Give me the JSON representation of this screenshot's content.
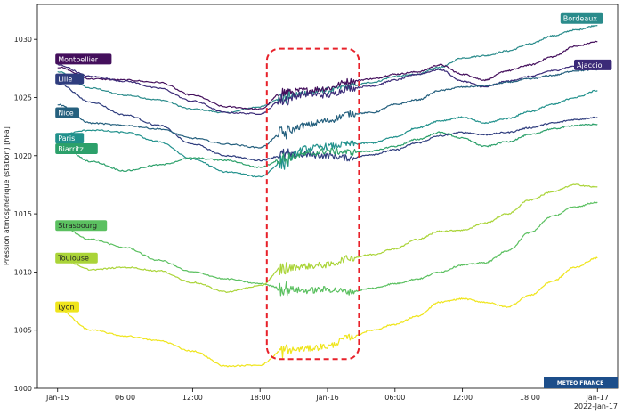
{
  "logo_text": "METEO FRANCE",
  "colors": {
    "logo_bg": "#1d4e8a",
    "highlight_box": "#e8212a",
    "label_text_dark": "#ffffff"
  },
  "chart_data": {
    "type": "line",
    "ylabel": "Pression atmosphérique (station) [hPa]",
    "xlabel": "",
    "ylim": [
      1000,
      1033
    ],
    "xlim_hours": [
      -1.8,
      49.8
    ],
    "grid": false,
    "y_ticks": [
      1000,
      1005,
      1010,
      1015,
      1020,
      1025,
      1030
    ],
    "x_ticks": [
      {
        "hour": 0,
        "label": "Jan-15"
      },
      {
        "hour": 6,
        "label": "06:00"
      },
      {
        "hour": 12,
        "label": "12:00"
      },
      {
        "hour": 18,
        "label": "18:00"
      },
      {
        "hour": 24,
        "label": "Jan-16"
      },
      {
        "hour": 30,
        "label": "06:00"
      },
      {
        "hour": 36,
        "label": "12:00"
      },
      {
        "hour": 42,
        "label": "18:00"
      },
      {
        "hour": 48,
        "label": "Jan-17"
      }
    ],
    "x_offset_label": "2022-Jan-17",
    "highlight_window_hours": [
      18.6,
      26.8
    ],
    "highlight_window_ylim": [
      1002.5,
      1029.2
    ],
    "series": [
      {
        "name": "Bordeaux",
        "color": "#2a8b8b",
        "points": [
          [
            0,
            1027.2
          ],
          [
            3,
            1025.8
          ],
          [
            6,
            1025.2
          ],
          [
            9,
            1024.8
          ],
          [
            12,
            1024.0
          ],
          [
            15,
            1023.7
          ],
          [
            18,
            1024.2
          ],
          [
            20,
            1025.0
          ],
          [
            22,
            1025.4
          ],
          [
            24,
            1025.6
          ],
          [
            26,
            1026.0
          ],
          [
            28,
            1026.3
          ],
          [
            30,
            1026.8
          ],
          [
            32,
            1027.0
          ],
          [
            34,
            1027.6
          ],
          [
            36,
            1028.4
          ],
          [
            38,
            1028.6
          ],
          [
            40,
            1029.0
          ],
          [
            42,
            1029.6
          ],
          [
            44,
            1030.3
          ],
          [
            46,
            1030.8
          ],
          [
            48,
            1031.2
          ]
        ]
      },
      {
        "name": "Montpellier",
        "color": "#440f5c",
        "points": [
          [
            0,
            1027.6
          ],
          [
            3,
            1026.6
          ],
          [
            6,
            1026.5
          ],
          [
            9,
            1026.3
          ],
          [
            12,
            1025.2
          ],
          [
            15,
            1024.2
          ],
          [
            18,
            1024.0
          ],
          [
            20,
            1025.4
          ],
          [
            22,
            1025.6
          ],
          [
            24,
            1025.8
          ],
          [
            26,
            1026.4
          ],
          [
            28,
            1026.6
          ],
          [
            30,
            1027.0
          ],
          [
            32,
            1027.2
          ],
          [
            34,
            1027.8
          ],
          [
            36,
            1027.0
          ],
          [
            38,
            1026.5
          ],
          [
            40,
            1027.3
          ],
          [
            42,
            1027.8
          ],
          [
            44,
            1028.5
          ],
          [
            46,
            1029.4
          ],
          [
            48,
            1029.8
          ]
        ]
      },
      {
        "name": "Ajaccio",
        "color": "#3b2a78",
        "points": [
          [
            0,
            1027.8
          ],
          [
            3,
            1026.8
          ],
          [
            6,
            1026.4
          ],
          [
            9,
            1025.8
          ],
          [
            12,
            1024.7
          ],
          [
            15,
            1023.7
          ],
          [
            18,
            1023.6
          ],
          [
            20,
            1024.8
          ],
          [
            22,
            1025.3
          ],
          [
            24,
            1025.2
          ],
          [
            26,
            1025.8
          ],
          [
            28,
            1026.0
          ],
          [
            30,
            1026.5
          ],
          [
            32,
            1027.0
          ],
          [
            34,
            1027.4
          ],
          [
            36,
            1026.4
          ],
          [
            38,
            1025.9
          ],
          [
            40,
            1026.4
          ],
          [
            42,
            1026.8
          ],
          [
            44,
            1027.3
          ],
          [
            46,
            1027.7
          ],
          [
            48,
            1028.0
          ]
        ]
      },
      {
        "name": "Lille",
        "color": "#2f3d7e",
        "points": [
          [
            0,
            1026.2
          ],
          [
            3,
            1024.6
          ],
          [
            6,
            1023.5
          ],
          [
            9,
            1022.6
          ],
          [
            12,
            1021.0
          ],
          [
            15,
            1020.0
          ],
          [
            18,
            1019.6
          ],
          [
            20,
            1020.0
          ],
          [
            22,
            1020.1
          ],
          [
            24,
            1020.0
          ],
          [
            26,
            1019.8
          ],
          [
            28,
            1020.1
          ],
          [
            30,
            1020.5
          ],
          [
            32,
            1021.1
          ],
          [
            34,
            1021.7
          ],
          [
            36,
            1022.0
          ],
          [
            38,
            1021.8
          ],
          [
            40,
            1022.0
          ],
          [
            42,
            1022.4
          ],
          [
            44,
            1022.8
          ],
          [
            46,
            1023.1
          ],
          [
            48,
            1023.3
          ]
        ]
      },
      {
        "name": "Nice",
        "color": "#25607e",
        "points": [
          [
            0,
            1024.4
          ],
          [
            3,
            1022.8
          ],
          [
            6,
            1022.6
          ],
          [
            9,
            1022.3
          ],
          [
            12,
            1021.5
          ],
          [
            15,
            1021.0
          ],
          [
            18,
            1020.7
          ],
          [
            20,
            1021.9
          ],
          [
            22,
            1022.6
          ],
          [
            24,
            1023.0
          ],
          [
            26,
            1023.6
          ],
          [
            28,
            1023.7
          ],
          [
            30,
            1024.4
          ],
          [
            32,
            1024.8
          ],
          [
            34,
            1025.6
          ],
          [
            36,
            1025.9
          ],
          [
            38,
            1026.0
          ],
          [
            40,
            1026.3
          ],
          [
            42,
            1026.6
          ],
          [
            44,
            1026.9
          ],
          [
            46,
            1027.3
          ],
          [
            48,
            1027.4
          ]
        ]
      },
      {
        "name": "Paris",
        "color": "#21918c",
        "points": [
          [
            0,
            1021.8
          ],
          [
            3,
            1022.2
          ],
          [
            6,
            1022.0
          ],
          [
            9,
            1021.2
          ],
          [
            12,
            1019.7
          ],
          [
            15,
            1018.6
          ],
          [
            18,
            1018.2
          ],
          [
            20,
            1019.4
          ],
          [
            22,
            1020.6
          ],
          [
            24,
            1020.8
          ],
          [
            26,
            1021.0
          ],
          [
            28,
            1021.1
          ],
          [
            30,
            1021.6
          ],
          [
            32,
            1022.4
          ],
          [
            34,
            1023.0
          ],
          [
            36,
            1023.3
          ],
          [
            38,
            1022.8
          ],
          [
            40,
            1023.2
          ],
          [
            42,
            1023.8
          ],
          [
            44,
            1024.4
          ],
          [
            46,
            1025.0
          ],
          [
            48,
            1025.6
          ]
        ]
      },
      {
        "name": "Biarritz",
        "color": "#2ca06a",
        "points": [
          [
            0,
            1021.0
          ],
          [
            3,
            1019.5
          ],
          [
            6,
            1018.7
          ],
          [
            9,
            1019.2
          ],
          [
            12,
            1019.8
          ],
          [
            15,
            1019.6
          ],
          [
            18,
            1019.0
          ],
          [
            20,
            1019.7
          ],
          [
            22,
            1020.1
          ],
          [
            24,
            1020.4
          ],
          [
            26,
            1020.3
          ],
          [
            28,
            1020.4
          ],
          [
            30,
            1020.8
          ],
          [
            32,
            1021.4
          ],
          [
            34,
            1022.0
          ],
          [
            36,
            1021.5
          ],
          [
            38,
            1020.8
          ],
          [
            40,
            1021.2
          ],
          [
            42,
            1021.8
          ],
          [
            44,
            1022.3
          ],
          [
            46,
            1022.6
          ],
          [
            48,
            1022.7
          ]
        ]
      },
      {
        "name": "Strasbourg",
        "color": "#5bc060",
        "points": [
          [
            0,
            1014.0
          ],
          [
            3,
            1012.8
          ],
          [
            6,
            1012.1
          ],
          [
            9,
            1011.0
          ],
          [
            12,
            1010.0
          ],
          [
            15,
            1009.4
          ],
          [
            18,
            1009.0
          ],
          [
            20,
            1008.6
          ],
          [
            22,
            1008.4
          ],
          [
            24,
            1008.5
          ],
          [
            26,
            1008.3
          ],
          [
            28,
            1008.6
          ],
          [
            30,
            1009.0
          ],
          [
            32,
            1009.4
          ],
          [
            34,
            1010.0
          ],
          [
            36,
            1010.6
          ],
          [
            38,
            1010.8
          ],
          [
            40,
            1011.8
          ],
          [
            42,
            1013.4
          ],
          [
            44,
            1014.8
          ],
          [
            46,
            1015.6
          ],
          [
            48,
            1016.0
          ]
        ]
      },
      {
        "name": "Toulouse",
        "color": "#aad438",
        "points": [
          [
            0,
            1011.2
          ],
          [
            3,
            1010.2
          ],
          [
            6,
            1010.4
          ],
          [
            9,
            1010.1
          ],
          [
            12,
            1009.1
          ],
          [
            15,
            1008.3
          ],
          [
            18,
            1008.8
          ],
          [
            20,
            1010.3
          ],
          [
            22,
            1010.5
          ],
          [
            24,
            1010.6
          ],
          [
            26,
            1011.2
          ],
          [
            28,
            1011.5
          ],
          [
            30,
            1012.0
          ],
          [
            32,
            1012.8
          ],
          [
            34,
            1013.5
          ],
          [
            36,
            1013.6
          ],
          [
            38,
            1014.2
          ],
          [
            40,
            1015.0
          ],
          [
            42,
            1016.2
          ],
          [
            44,
            1016.9
          ],
          [
            46,
            1017.5
          ],
          [
            48,
            1017.3
          ]
        ]
      },
      {
        "name": "Lyon",
        "color": "#efe51c",
        "points": [
          [
            0,
            1006.8
          ],
          [
            3,
            1005.0
          ],
          [
            6,
            1004.5
          ],
          [
            9,
            1004.1
          ],
          [
            12,
            1003.2
          ],
          [
            15,
            1001.9
          ],
          [
            18,
            1002.0
          ],
          [
            20,
            1003.2
          ],
          [
            22,
            1003.4
          ],
          [
            24,
            1003.6
          ],
          [
            26,
            1004.4
          ],
          [
            28,
            1005.0
          ],
          [
            30,
            1005.5
          ],
          [
            32,
            1006.2
          ],
          [
            34,
            1007.4
          ],
          [
            36,
            1007.7
          ],
          [
            38,
            1007.4
          ],
          [
            40,
            1007.0
          ],
          [
            42,
            1008.0
          ],
          [
            44,
            1009.2
          ],
          [
            46,
            1010.4
          ],
          [
            48,
            1011.2
          ]
        ]
      }
    ],
    "labels": [
      {
        "name": "Bordeaux",
        "hour": 46.6,
        "value": 1031.8,
        "anchor": "middle",
        "color": "#2a8b8b"
      },
      {
        "name": "Montpellier",
        "hour": -0.2,
        "value": 1028.3,
        "anchor": "start",
        "color": "#440f5c"
      },
      {
        "name": "Ajaccio",
        "hour": 47.6,
        "value": 1027.8,
        "anchor": "middle",
        "color": "#3b2a78"
      },
      {
        "name": "Lille",
        "hour": -0.2,
        "value": 1026.6,
        "anchor": "start",
        "color": "#2f3d7e"
      },
      {
        "name": "Nice",
        "hour": -0.2,
        "value": 1023.7,
        "anchor": "start",
        "color": "#25607e"
      },
      {
        "name": "Paris",
        "hour": -0.2,
        "value": 1021.5,
        "anchor": "start",
        "color": "#21918c"
      },
      {
        "name": "Biarritz",
        "hour": -0.2,
        "value": 1020.6,
        "anchor": "start",
        "color": "#2ca06a"
      },
      {
        "name": "Strasbourg",
        "hour": -0.2,
        "value": 1014.0,
        "anchor": "start",
        "color": "#5bc060"
      },
      {
        "name": "Toulouse",
        "hour": -0.2,
        "value": 1011.2,
        "anchor": "start",
        "color": "#aad438"
      },
      {
        "name": "Lyon",
        "hour": -0.2,
        "value": 1007.0,
        "anchor": "start",
        "color": "#efe51c"
      }
    ]
  }
}
